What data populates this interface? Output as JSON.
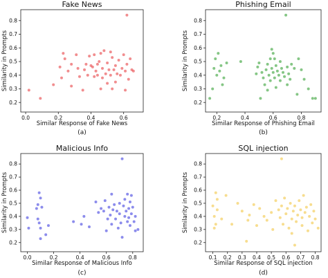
{
  "chart_data": [
    {
      "type": "scatter",
      "title": "Fake News",
      "xlabel": "Similar Response of Fake News",
      "ylabel": "Similarity in Prompts",
      "caption": "(a)",
      "color": "#e8474a",
      "xlim": [
        -0.03,
        0.72
      ],
      "ylim": [
        0.13,
        0.88
      ],
      "xticks": [
        0.0,
        0.2,
        0.4,
        0.6
      ],
      "yticks": [
        0.2,
        0.3,
        0.4,
        0.5,
        0.6,
        0.7,
        0.8
      ],
      "points": [
        [
          0.02,
          0.29
        ],
        [
          0.09,
          0.23
        ],
        [
          0.17,
          0.33
        ],
        [
          0.21,
          0.46
        ],
        [
          0.22,
          0.38
        ],
        [
          0.23,
          0.56
        ],
        [
          0.24,
          0.52
        ],
        [
          0.26,
          0.43
        ],
        [
          0.28,
          0.48
        ],
        [
          0.28,
          0.32
        ],
        [
          0.31,
          0.55
        ],
        [
          0.32,
          0.45
        ],
        [
          0.33,
          0.39
        ],
        [
          0.35,
          0.29
        ],
        [
          0.36,
          0.44
        ],
        [
          0.37,
          0.48
        ],
        [
          0.38,
          0.4
        ],
        [
          0.39,
          0.54
        ],
        [
          0.4,
          0.47
        ],
        [
          0.41,
          0.46
        ],
        [
          0.42,
          0.39
        ],
        [
          0.42,
          0.55
        ],
        [
          0.43,
          0.43
        ],
        [
          0.44,
          0.4
        ],
        [
          0.44,
          0.48
        ],
        [
          0.45,
          0.5
        ],
        [
          0.46,
          0.56
        ],
        [
          0.47,
          0.38
        ],
        [
          0.47,
          0.45
        ],
        [
          0.48,
          0.58
        ],
        [
          0.49,
          0.41
        ],
        [
          0.5,
          0.34
        ],
        [
          0.5,
          0.49
        ],
        [
          0.51,
          0.44
        ],
        [
          0.52,
          0.4
        ],
        [
          0.52,
          0.57
        ],
        [
          0.53,
          0.53
        ],
        [
          0.54,
          0.44
        ],
        [
          0.55,
          0.35
        ],
        [
          0.55,
          0.47
        ],
        [
          0.56,
          0.41
        ],
        [
          0.57,
          0.51
        ],
        [
          0.58,
          0.4
        ],
        [
          0.59,
          0.45
        ],
        [
          0.6,
          0.55
        ],
        [
          0.61,
          0.43
        ],
        [
          0.61,
          0.29
        ],
        [
          0.62,
          0.84
        ],
        [
          0.62,
          0.48
        ],
        [
          0.63,
          0.37
        ],
        [
          0.64,
          0.52
        ],
        [
          0.65,
          0.44
        ],
        [
          0.66,
          0.43
        ],
        [
          0.53,
          0.3
        ],
        [
          0.46,
          0.3
        ]
      ]
    },
    {
      "type": "scatter",
      "title": "Phishing Email",
      "xlabel": "Similar Response of Phishing Email",
      "ylabel": "Similarity in Prompts",
      "caption": "(b)",
      "color": "#3aa33a",
      "xlim": [
        0.12,
        0.94
      ],
      "ylim": [
        0.13,
        0.88
      ],
      "xticks": [
        0.2,
        0.4,
        0.6,
        0.8
      ],
      "yticks": [
        0.2,
        0.3,
        0.4,
        0.5,
        0.6,
        0.7,
        0.8
      ],
      "points": [
        [
          0.15,
          0.23
        ],
        [
          0.17,
          0.3
        ],
        [
          0.18,
          0.45
        ],
        [
          0.19,
          0.52
        ],
        [
          0.2,
          0.4
        ],
        [
          0.21,
          0.56
        ],
        [
          0.22,
          0.43
        ],
        [
          0.23,
          0.47
        ],
        [
          0.24,
          0.33
        ],
        [
          0.25,
          0.38
        ],
        [
          0.27,
          0.49
        ],
        [
          0.37,
          0.5
        ],
        [
          0.48,
          0.41
        ],
        [
          0.49,
          0.46
        ],
        [
          0.5,
          0.49
        ],
        [
          0.51,
          0.23
        ],
        [
          0.52,
          0.42
        ],
        [
          0.53,
          0.38
        ],
        [
          0.54,
          0.33
        ],
        [
          0.55,
          0.44
        ],
        [
          0.56,
          0.48
        ],
        [
          0.56,
          0.29
        ],
        [
          0.57,
          0.4
        ],
        [
          0.58,
          0.52
        ],
        [
          0.58,
          0.36
        ],
        [
          0.59,
          0.45
        ],
        [
          0.6,
          0.56
        ],
        [
          0.6,
          0.42
        ],
        [
          0.61,
          0.38
        ],
        [
          0.62,
          0.47
        ],
        [
          0.62,
          0.31
        ],
        [
          0.63,
          0.43
        ],
        [
          0.64,
          0.4
        ],
        [
          0.65,
          0.5
        ],
        [
          0.65,
          0.36
        ],
        [
          0.66,
          0.45
        ],
        [
          0.67,
          0.42
        ],
        [
          0.68,
          0.39
        ],
        [
          0.69,
          0.84
        ],
        [
          0.7,
          0.46
        ],
        [
          0.7,
          0.33
        ],
        [
          0.71,
          0.41
        ],
        [
          0.72,
          0.37
        ],
        [
          0.73,
          0.48
        ],
        [
          0.75,
          0.45
        ],
        [
          0.77,
          0.26
        ],
        [
          0.78,
          0.52
        ],
        [
          0.8,
          0.44
        ],
        [
          0.82,
          0.37
        ],
        [
          0.85,
          0.3
        ],
        [
          0.88,
          0.23
        ],
        [
          0.9,
          0.23
        ],
        [
          0.61,
          0.52
        ],
        [
          0.59,
          0.59
        ]
      ]
    },
    {
      "type": "scatter",
      "title": "Malicious Info",
      "xlabel": "Similar Response of Malicious Info",
      "ylabel": "Similarity in Prompts",
      "caption": "(c)",
      "color": "#4646e0",
      "xlim": [
        -0.05,
        0.88
      ],
      "ylim": [
        0.13,
        0.88
      ],
      "xticks": [
        0.0,
        0.2,
        0.4,
        0.6,
        0.8
      ],
      "yticks": [
        0.2,
        0.3,
        0.4,
        0.5,
        0.6,
        0.7,
        0.8
      ],
      "points": [
        [
          0.0,
          0.39
        ],
        [
          0.01,
          0.31
        ],
        [
          0.07,
          0.46
        ],
        [
          0.08,
          0.49
        ],
        [
          0.08,
          0.38
        ],
        [
          0.09,
          0.58
        ],
        [
          0.09,
          0.35
        ],
        [
          0.1,
          0.23
        ],
        [
          0.1,
          0.31
        ],
        [
          0.1,
          0.54
        ],
        [
          0.11,
          0.47
        ],
        [
          0.14,
          0.26
        ],
        [
          0.16,
          0.33
        ],
        [
          0.35,
          0.36
        ],
        [
          0.41,
          0.34
        ],
        [
          0.43,
          0.4
        ],
        [
          0.47,
          0.32
        ],
        [
          0.52,
          0.51
        ],
        [
          0.54,
          0.43
        ],
        [
          0.56,
          0.46
        ],
        [
          0.58,
          0.44
        ],
        [
          0.59,
          0.52
        ],
        [
          0.6,
          0.29
        ],
        [
          0.61,
          0.38
        ],
        [
          0.62,
          0.47
        ],
        [
          0.63,
          0.41
        ],
        [
          0.64,
          0.34
        ],
        [
          0.65,
          0.45
        ],
        [
          0.66,
          0.49
        ],
        [
          0.67,
          0.38
        ],
        [
          0.68,
          0.44
        ],
        [
          0.69,
          0.31
        ],
        [
          0.7,
          0.5
        ],
        [
          0.7,
          0.42
        ],
        [
          0.71,
          0.35
        ],
        [
          0.72,
          0.84
        ],
        [
          0.72,
          0.24
        ],
        [
          0.73,
          0.48
        ],
        [
          0.74,
          0.4
        ],
        [
          0.74,
          0.53
        ],
        [
          0.75,
          0.44
        ],
        [
          0.76,
          0.57
        ],
        [
          0.76,
          0.36
        ],
        [
          0.77,
          0.46
        ],
        [
          0.77,
          0.39
        ],
        [
          0.78,
          0.33
        ],
        [
          0.78,
          0.51
        ],
        [
          0.79,
          0.42
        ],
        [
          0.8,
          0.47
        ],
        [
          0.81,
          0.36
        ],
        [
          0.82,
          0.4
        ],
        [
          0.82,
          0.29
        ],
        [
          0.84,
          0.3
        ],
        [
          0.79,
          0.56
        ],
        [
          0.64,
          0.57
        ]
      ]
    },
    {
      "type": "scatter",
      "title": "SQL injection",
      "xlabel": "Similar Response of SQL injection",
      "ylabel": "Similarity in Prompts",
      "caption": "(d)",
      "color": "#f2c84b",
      "xlim": [
        0.05,
        0.84
      ],
      "ylim": [
        0.13,
        0.88
      ],
      "xticks": [
        0.1,
        0.2,
        0.3,
        0.4,
        0.5,
        0.6,
        0.7,
        0.8
      ],
      "yticks": [
        0.2,
        0.3,
        0.4,
        0.5,
        0.6,
        0.7,
        0.8
      ],
      "points": [
        [
          0.1,
          0.48
        ],
        [
          0.11,
          0.4
        ],
        [
          0.11,
          0.31
        ],
        [
          0.12,
          0.58
        ],
        [
          0.12,
          0.34
        ],
        [
          0.13,
          0.53
        ],
        [
          0.13,
          0.45
        ],
        [
          0.16,
          0.38
        ],
        [
          0.19,
          0.56
        ],
        [
          0.23,
          0.34
        ],
        [
          0.27,
          0.5
        ],
        [
          0.3,
          0.44
        ],
        [
          0.33,
          0.21
        ],
        [
          0.34,
          0.37
        ],
        [
          0.38,
          0.49
        ],
        [
          0.4,
          0.33
        ],
        [
          0.42,
          0.46
        ],
        [
          0.45,
          0.4
        ],
        [
          0.47,
          0.37
        ],
        [
          0.5,
          0.43
        ],
        [
          0.51,
          0.3
        ],
        [
          0.53,
          0.52
        ],
        [
          0.55,
          0.45
        ],
        [
          0.56,
          0.39
        ],
        [
          0.57,
          0.84
        ],
        [
          0.57,
          0.48
        ],
        [
          0.58,
          0.34
        ],
        [
          0.59,
          0.54
        ],
        [
          0.6,
          0.42
        ],
        [
          0.61,
          0.46
        ],
        [
          0.62,
          0.31
        ],
        [
          0.63,
          0.5
        ],
        [
          0.64,
          0.38
        ],
        [
          0.64,
          0.27
        ],
        [
          0.65,
          0.44
        ],
        [
          0.66,
          0.18
        ],
        [
          0.66,
          0.48
        ],
        [
          0.67,
          0.36
        ],
        [
          0.68,
          0.41
        ],
        [
          0.69,
          0.52
        ],
        [
          0.7,
          0.45
        ],
        [
          0.71,
          0.33
        ],
        [
          0.71,
          0.39
        ],
        [
          0.72,
          0.56
        ],
        [
          0.73,
          0.43
        ],
        [
          0.74,
          0.47
        ],
        [
          0.75,
          0.29
        ],
        [
          0.76,
          0.4
        ],
        [
          0.77,
          0.49
        ],
        [
          0.78,
          0.35
        ],
        [
          0.79,
          0.44
        ],
        [
          0.8,
          0.38
        ],
        [
          0.82,
          0.31
        ],
        [
          0.35,
          0.41
        ]
      ]
    }
  ]
}
